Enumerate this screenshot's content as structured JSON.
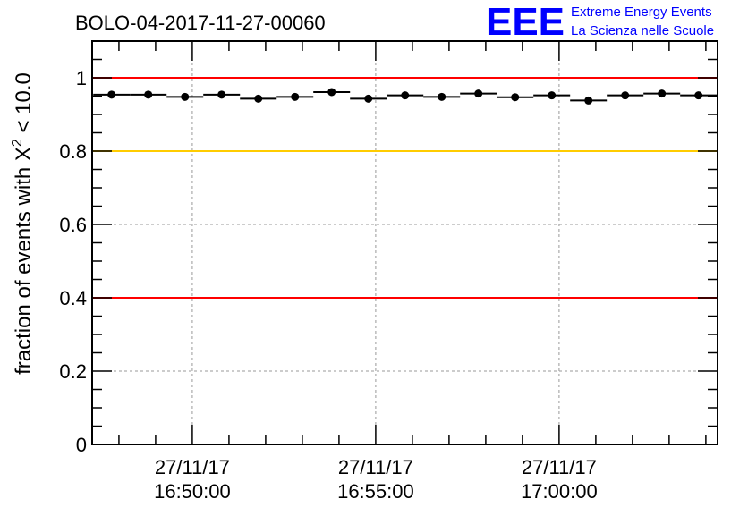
{
  "chart_data": {
    "type": "scatter",
    "title": "BOLO-04-2017-11-27-00060",
    "ylabel": "fraction of events with χ² < 10.0",
    "ylabel_parts": {
      "main": "fraction of events with X",
      "sup": "2",
      "tail": " < 10.0"
    },
    "xlabel": "",
    "x_unit": "minutes after 27/11/17 16:50:00",
    "xlim": [
      -2.73,
      14.32
    ],
    "ylim": [
      0,
      1.1
    ],
    "grid": true,
    "y_ticks": [
      {
        "value": 0,
        "label": "0"
      },
      {
        "value": 0.2,
        "label": "0.2"
      },
      {
        "value": 0.4,
        "label": "0.4"
      },
      {
        "value": 0.6,
        "label": "0.6"
      },
      {
        "value": 0.8,
        "label": "0.8"
      },
      {
        "value": 1,
        "label": "1"
      }
    ],
    "x_ticks": [
      {
        "value": 0,
        "date": "27/11/17",
        "time": "16:50:00"
      },
      {
        "value": 5,
        "date": "27/11/17",
        "time": "16:55:00"
      },
      {
        "value": 10,
        "date": "27/11/17",
        "time": "17:00:00"
      }
    ],
    "reference_lines": [
      {
        "value": 1.0,
        "color": "#ff0000"
      },
      {
        "value": 0.8,
        "color": "#ffcc00"
      },
      {
        "value": 0.4,
        "color": "#ff0000"
      }
    ],
    "bin_width": 1,
    "x": [
      -2.2,
      -1.2,
      -0.2,
      0.8,
      1.8,
      2.8,
      3.8,
      4.8,
      5.8,
      6.8,
      7.8,
      8.8,
      9.8,
      10.8,
      11.8,
      12.8,
      13.8
    ],
    "values": [
      0.954,
      0.954,
      0.948,
      0.954,
      0.943,
      0.948,
      0.961,
      0.943,
      0.952,
      0.948,
      0.957,
      0.947,
      0.952,
      0.938,
      0.952,
      0.957,
      0.952
    ]
  },
  "logo": {
    "text": "EEE",
    "line1": "Extreme Energy Events",
    "line2": "La Scienza nelle Scuole",
    "color": "#0000ff"
  }
}
